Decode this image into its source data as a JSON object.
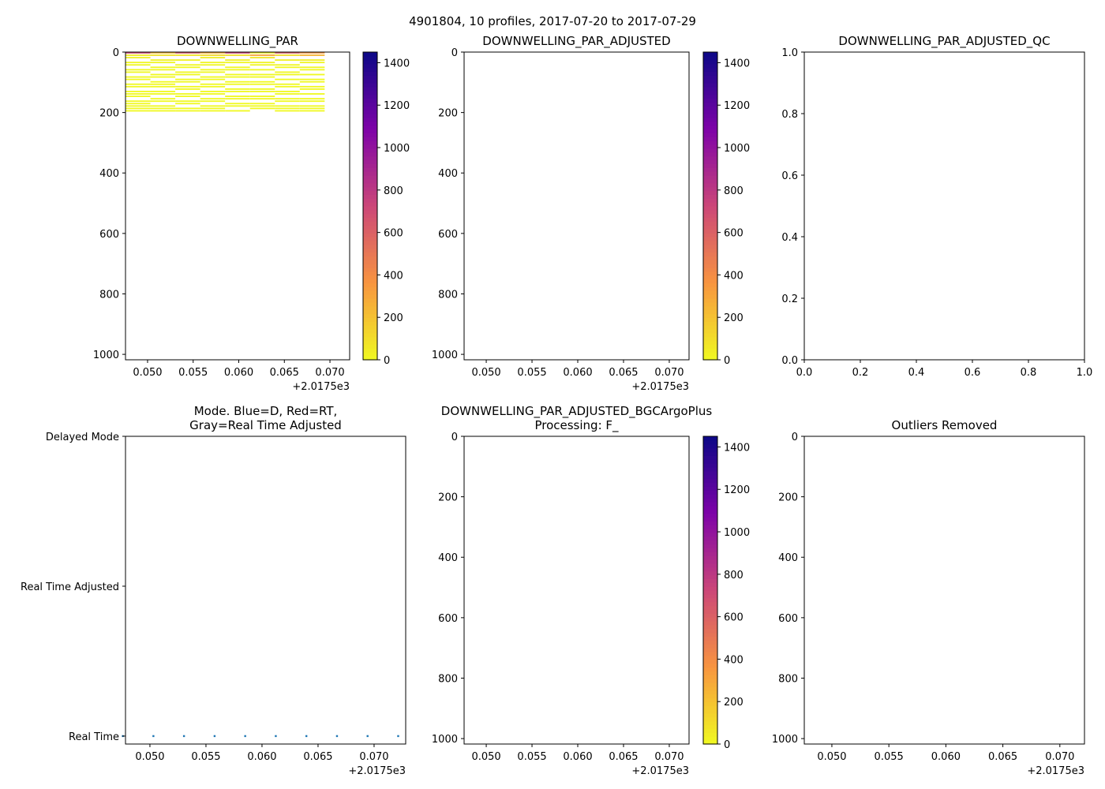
{
  "suptitle": "4901804, 10 profiles, 2017-07-20 to 2017-07-29",
  "colormap": "plasma_r",
  "chart_data": [
    {
      "id": "par",
      "type": "heatmap",
      "title": "DOWNWELLING_PAR",
      "xlim": [
        0.04758,
        0.07216
      ],
      "ylim": [
        1018,
        0
      ],
      "xticks": [
        "0.050",
        "0.055",
        "0.060",
        "0.065",
        "0.070"
      ],
      "xtick_values": [
        0.05,
        0.055,
        0.06,
        0.065,
        0.07
      ],
      "x_offset_label": "+2.0175e3",
      "yticks": [
        0,
        200,
        400,
        600,
        800,
        1000
      ],
      "colorbar": {
        "min": 0,
        "max": 1450,
        "ticks": [
          0,
          200,
          400,
          600,
          800,
          1000,
          1200,
          1400
        ]
      },
      "depth_step": 8,
      "profiles": [
        {
          "x": 0.04758,
          "values": [
            700,
            60,
            20,
            null,
            8,
            5,
            null,
            3,
            2,
            null,
            1,
            1,
            null,
            1,
            0,
            null,
            0,
            0,
            0,
            null,
            0,
            0,
            0,
            0,
            0
          ]
        },
        {
          "x": 0.05031,
          "values": [
            220,
            90,
            null,
            20,
            10,
            null,
            5,
            3,
            null,
            2,
            1,
            null,
            1,
            0,
            0,
            null,
            0,
            0,
            null,
            0,
            0,
            null,
            0,
            0,
            0
          ]
        },
        {
          "x": 0.05304,
          "values": [
            620,
            80,
            null,
            25,
            null,
            10,
            5,
            null,
            3,
            2,
            null,
            1,
            1,
            null,
            0,
            0,
            null,
            0,
            0,
            null,
            0,
            0,
            null,
            0,
            0
          ]
        },
        {
          "x": 0.05577,
          "values": [
            260,
            120,
            40,
            null,
            15,
            8,
            null,
            4,
            2,
            null,
            1,
            1,
            null,
            0,
            0,
            null,
            0,
            0,
            null,
            0,
            0,
            null,
            0,
            0,
            0
          ]
        },
        {
          "x": 0.0585,
          "values": [
            720,
            100,
            null,
            30,
            12,
            null,
            6,
            3,
            null,
            2,
            1,
            null,
            1,
            0,
            null,
            0,
            0,
            null,
            0,
            0,
            null,
            0,
            0,
            null,
            0
          ]
        },
        {
          "x": 0.06123,
          "values": [
            20,
            300,
            60,
            null,
            20,
            10,
            null,
            5,
            null,
            2,
            1,
            null,
            1,
            0,
            null,
            0,
            0,
            null,
            0,
            0,
            null,
            0,
            0,
            0,
            null
          ]
        },
        {
          "x": 0.06396,
          "values": [
            600,
            110,
            null,
            30,
            null,
            12,
            6,
            null,
            3,
            2,
            null,
            1,
            null,
            0,
            0,
            null,
            0,
            0,
            null,
            0,
            0,
            null,
            0,
            0,
            0
          ]
        },
        {
          "x": 0.06669,
          "values": [
            350,
            250,
            null,
            40,
            15,
            null,
            6,
            3,
            null,
            2,
            null,
            1,
            1,
            null,
            0,
            0,
            null,
            0,
            null,
            0,
            0,
            null,
            0,
            0,
            0
          ]
        }
      ],
      "profile_width": 0.00273
    },
    {
      "id": "par_adj",
      "type": "heatmap",
      "title": "DOWNWELLING_PAR_ADJUSTED",
      "xlim": [
        0.04758,
        0.07216
      ],
      "ylim": [
        1018,
        0
      ],
      "xticks": [
        "0.050",
        "0.055",
        "0.060",
        "0.065",
        "0.070"
      ],
      "xtick_values": [
        0.05,
        0.055,
        0.06,
        0.065,
        0.07
      ],
      "x_offset_label": "+2.0175e3",
      "yticks": [
        0,
        200,
        400,
        600,
        800,
        1000
      ],
      "colorbar": {
        "min": 0,
        "max": 1450,
        "ticks": [
          0,
          200,
          400,
          600,
          800,
          1000,
          1200,
          1400
        ]
      },
      "profiles": []
    },
    {
      "id": "par_adj_qc",
      "type": "scatter",
      "title": "DOWNWELLING_PAR_ADJUSTED_QC",
      "xlim": [
        0,
        1
      ],
      "ylim": [
        0,
        1
      ],
      "xticks": [
        "0.0",
        "0.2",
        "0.4",
        "0.6",
        "0.8",
        "1.0"
      ],
      "xtick_values": [
        0,
        0.2,
        0.4,
        0.6,
        0.8,
        1.0
      ],
      "ytick_labels": [
        "0.0",
        "0.2",
        "0.4",
        "0.6",
        "0.8",
        "1.0"
      ],
      "ytick_values": [
        0,
        0.2,
        0.4,
        0.6,
        0.8,
        1.0
      ],
      "points": []
    },
    {
      "id": "mode",
      "type": "scatter",
      "title": "Mode. Blue=D, Red=RT,\nGray=Real Time Adjusted",
      "xlim": [
        0.04782,
        0.07282
      ],
      "ylim": [
        -0.053,
        2
      ],
      "xticks": [
        "0.050",
        "0.055",
        "0.060",
        "0.065",
        "0.070"
      ],
      "xtick_values": [
        0.05,
        0.055,
        0.06,
        0.065,
        0.07
      ],
      "x_offset_label": "+2.0175e3",
      "ytick_labels": [
        "Real Time",
        "Real Time Adjusted",
        "Delayed Mode"
      ],
      "ytick_values": [
        0,
        1,
        2
      ],
      "point_color": "#1f77b4",
      "points": [
        {
          "x": 0.04758,
          "y": 0
        },
        {
          "x": 0.05031,
          "y": 0
        },
        {
          "x": 0.05304,
          "y": 0
        },
        {
          "x": 0.05577,
          "y": 0
        },
        {
          "x": 0.0585,
          "y": 0
        },
        {
          "x": 0.06123,
          "y": 0
        },
        {
          "x": 0.06396,
          "y": 0
        },
        {
          "x": 0.06669,
          "y": 0
        },
        {
          "x": 0.06942,
          "y": 0
        },
        {
          "x": 0.07215,
          "y": 0
        }
      ]
    },
    {
      "id": "par_bgc",
      "type": "heatmap",
      "title": "DOWNWELLING_PAR_ADJUSTED_BGCArgoPlus\nProcessing: F_",
      "xlim": [
        0.04758,
        0.07216
      ],
      "ylim": [
        1018,
        0
      ],
      "xticks": [
        "0.050",
        "0.055",
        "0.060",
        "0.065",
        "0.070"
      ],
      "xtick_values": [
        0.05,
        0.055,
        0.06,
        0.065,
        0.07
      ],
      "x_offset_label": "+2.0175e3",
      "yticks": [
        0,
        200,
        400,
        600,
        800,
        1000
      ],
      "colorbar": {
        "min": 0,
        "max": 1450,
        "ticks": [
          0,
          200,
          400,
          600,
          800,
          1000,
          1200,
          1400
        ]
      },
      "profiles": []
    },
    {
      "id": "outliers",
      "type": "heatmap",
      "title": "Outliers Removed",
      "xlim": [
        0.04758,
        0.07216
      ],
      "ylim": [
        1018,
        0
      ],
      "xticks": [
        "0.050",
        "0.055",
        "0.060",
        "0.065",
        "0.070"
      ],
      "xtick_values": [
        0.05,
        0.055,
        0.06,
        0.065,
        0.07
      ],
      "x_offset_label": "+2.0175e3",
      "yticks": [
        0,
        200,
        400,
        600,
        800,
        1000
      ],
      "profiles": []
    }
  ]
}
